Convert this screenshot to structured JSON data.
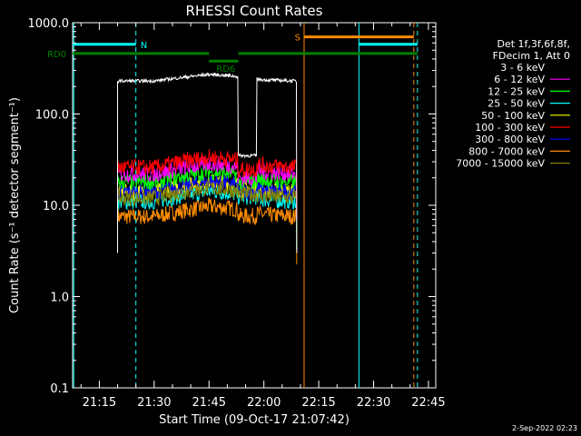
{
  "chart_data": {
    "type": "line",
    "title": "RHESSI Count Rates",
    "xlabel": "Start Time (09-Oct-17 21:07:42)",
    "ylabel": "Count Rate (s⁻¹ detector segment⁻¹)",
    "yscale": "log",
    "ylim": [
      0.1,
      1000.0
    ],
    "xlim": [
      "21:07:42",
      "22:47:00"
    ],
    "yticks": [
      "0.1",
      "1.0",
      "10.0",
      "100.0",
      "1000.0"
    ],
    "xticks": [
      "21:15",
      "21:30",
      "21:45",
      "22:00",
      "22:15",
      "22:30",
      "22:45"
    ],
    "grid": false,
    "legend_placement": "right",
    "legend_header": [
      "Det 1f,3f,6f,8f,",
      "FDecim 1, Att 0"
    ],
    "footer": "2-Sep-2022 02:23",
    "series": [
      {
        "name": "3 - 6 keV",
        "color": "#000000",
        "level": 230,
        "dip": 35
      },
      {
        "name": "6 - 12 keV",
        "color": "#ff00ff",
        "level": 22,
        "dip": 21
      },
      {
        "name": "12 - 25 keV",
        "color": "#00ff00",
        "level": 18,
        "dip": 19
      },
      {
        "name": "25 - 50 keV",
        "color": "#00ffff",
        "level": 11,
        "dip": 13
      },
      {
        "name": "50 - 100 keV",
        "color": "#ffff00",
        "level": 14,
        "dip": 16
      },
      {
        "name": "100 - 300 keV",
        "color": "#ff0000",
        "level": 26,
        "dip": 26
      },
      {
        "name": "300 - 800 keV",
        "color": "#0000ff",
        "level": 14,
        "dip": 15
      },
      {
        "name": "800 - 7000 keV",
        "color": "#ff8c00",
        "level": 7.5,
        "dip": 8
      },
      {
        "name": "7000 - 15000 keV",
        "color": "#808000",
        "level": 12,
        "dip": 14
      }
    ],
    "data_interval": [
      "21:20",
      "22:09"
    ],
    "attenuator_dip": [
      "21:53",
      "21:58"
    ],
    "rate_profile": [
      {
        "t": "21:20",
        "f": 1.0
      },
      {
        "t": "21:30",
        "f": 1.0
      },
      {
        "t": "21:40",
        "f": 1.2
      },
      {
        "t": "21:45",
        "f": 1.3
      },
      {
        "t": "21:50",
        "f": 1.25
      },
      {
        "t": "22:00",
        "f": 1.05
      },
      {
        "t": "22:09",
        "f": 1.0
      }
    ],
    "vlines": [
      {
        "t": "21:08",
        "color": "#00ffff",
        "style": "solid"
      },
      {
        "t": "21:25",
        "color": "#00ffff",
        "style": "dashed"
      },
      {
        "t": "22:11",
        "color": "#ff8c00",
        "style": "solid"
      },
      {
        "t": "22:26",
        "color": "#00ffff",
        "style": "solid"
      },
      {
        "t": "22:41",
        "color": "#ff8c00",
        "style": "dashed"
      },
      {
        "t": "22:42",
        "color": "#00ffff",
        "style": "dashed"
      }
    ],
    "annotations": [
      {
        "label": "N",
        "color": "#00ffff",
        "t_start": "21:07:42",
        "t_end": "21:25",
        "y": 580
      },
      {
        "label": "S",
        "color": "#ff8c00",
        "t_start": "22:11",
        "t_end": "22:41",
        "y": 700
      },
      {
        "label": "",
        "color": "#00ffff",
        "t_start": "22:26",
        "t_end": "22:42",
        "y": 580
      },
      {
        "label": "RD0",
        "color": "#008000",
        "t_start": "21:07:42",
        "t_end": "21:45",
        "y": 460
      },
      {
        "label": "RD6",
        "color": "#008000",
        "t_start": "21:45",
        "t_end": "21:53",
        "y": 380
      },
      {
        "label": "",
        "color": "#008000",
        "t_start": "21:53",
        "t_end": "22:42",
        "y": 460
      }
    ]
  }
}
